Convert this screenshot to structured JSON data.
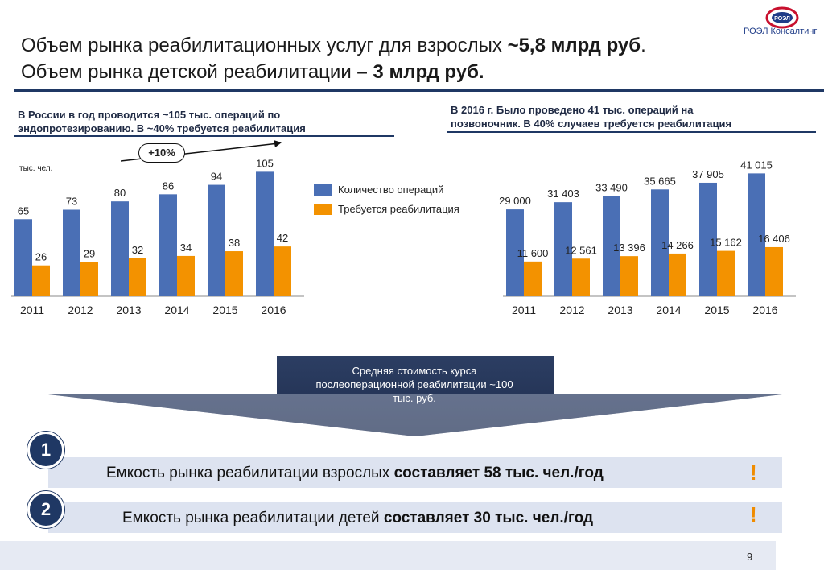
{
  "header": {
    "title_part1": "Объем рынка реабилитационных услуг для взрослых ",
    "title_bold1": "~5,8 млрд руб",
    "title_part2": ". Объем рынка детской реабилитации ",
    "title_bold2": "– 3 млрд руб."
  },
  "logo": {
    "badge_text": "РОЭЛ",
    "company": "РОЭЛ Консалтинг"
  },
  "left_note": {
    "line1": "В России в год проводится ~105 тыс. операций по",
    "line2": "эндопротезированию. В ~40% требуется реабилитация"
  },
  "right_note": {
    "line1": "В 2016 г.  Было проведено 41 тыс. операций на",
    "line2": "позвоночник. В 40% случаев требуется реабилитация"
  },
  "growth_badge": "+10%",
  "unit_label": "тыс. чел.",
  "legend": {
    "series1": "Количество операций",
    "series2": "Требуется реабилитация"
  },
  "colors": {
    "series1": "#4a6fb5",
    "series2": "#f39200",
    "accent": "#1f3864",
    "excl": "#f08c00"
  },
  "chart_data": [
    {
      "type": "bar",
      "categories": [
        "2011",
        "2012",
        "2013",
        "2014",
        "2015",
        "2016"
      ],
      "series": [
        {
          "name": "Количество операций",
          "values": [
            65,
            73,
            80,
            86,
            94,
            105
          ],
          "labels": [
            "65",
            "73",
            "80",
            "86",
            "94",
            "105"
          ]
        },
        {
          "name": "Требуется реабилитация",
          "values": [
            26,
            29,
            32,
            34,
            38,
            42
          ],
          "labels": [
            "26",
            "29",
            "32",
            "34",
            "38",
            "42"
          ]
        }
      ],
      "ylabel": "тыс. чел.",
      "ylim": [
        0,
        110
      ]
    },
    {
      "type": "bar",
      "categories": [
        "2011",
        "2012",
        "2013",
        "2014",
        "2015",
        "2016"
      ],
      "series": [
        {
          "name": "Количество операций",
          "values": [
            29000,
            31403,
            33490,
            35665,
            37905,
            41015
          ],
          "labels": [
            "29 000",
            "31 403",
            "33 490",
            "35 665",
            "37 905",
            "41 015"
          ]
        },
        {
          "name": "Требуется реабилитация",
          "values": [
            11600,
            12561,
            13396,
            14266,
            15162,
            16406
          ],
          "labels": [
            "11 600",
            "12 561",
            "13 396",
            "14 266",
            "15 162",
            "16 406"
          ]
        }
      ],
      "ylim": [
        0,
        43000
      ]
    }
  ],
  "callout": {
    "line1": "Средняя стоимость курса",
    "line2": "послеоперационной  реабилитации ~100",
    "line3": "тыс. руб."
  },
  "rows": [
    {
      "number": "1",
      "text": "Емкость рынка реабилитации взрослых ",
      "bold": "составляет 58 тыс. чел./год",
      "mark": "!"
    },
    {
      "number": "2",
      "text": "Емкость рынка реабилитации детей ",
      "bold": "составляет 30 тыс. чел./год",
      "mark": "!"
    }
  ],
  "page_number": "9"
}
